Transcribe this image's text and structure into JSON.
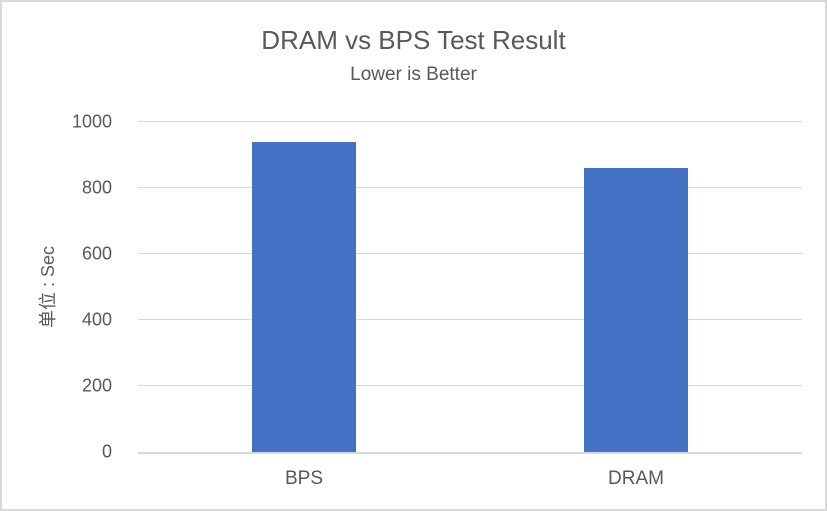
{
  "chart_data": {
    "type": "bar",
    "title": "DRAM vs BPS Test Result",
    "subtitle": "Lower is Better",
    "ylabel": "单位 : Sec",
    "xlabel": "",
    "categories": [
      "BPS",
      "DRAM"
    ],
    "values": [
      940,
      860
    ],
    "ylim": [
      0,
      1000
    ],
    "yticks": [
      0,
      200,
      400,
      600,
      800,
      1000
    ],
    "grid": true,
    "legend": "none",
    "colors": {
      "bar": "#4472C4",
      "gridline": "#D9D9D9",
      "axis_line": "#D9D9D9",
      "text": "#595959",
      "background": "#FFFFFF",
      "border": "#D9D9D9"
    }
  }
}
